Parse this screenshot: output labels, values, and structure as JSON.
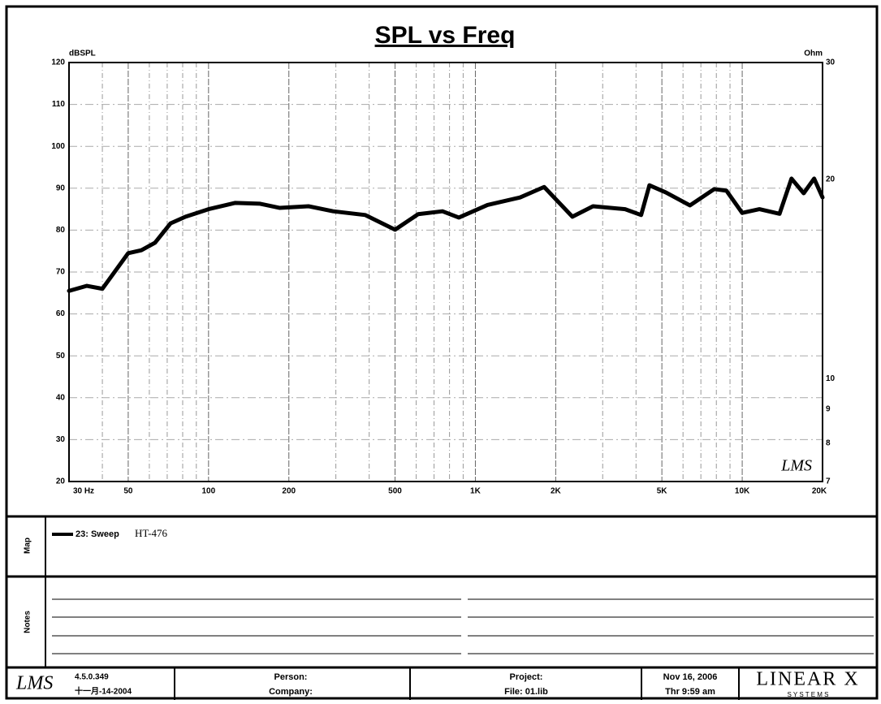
{
  "chart_data": {
    "type": "line",
    "title": "SPL vs Freq",
    "y_label": "dBSPL",
    "y2_label": "Ohm",
    "logo": "LMS",
    "x": [
      30,
      35,
      40,
      50,
      56,
      63,
      72,
      82,
      100,
      126,
      156,
      185,
      237,
      293,
      387,
      500,
      610,
      753,
      867,
      1110,
      1470,
      1810,
      2310,
      2760,
      3640,
      4180,
      4490,
      5170,
      6370,
      7860,
      8730,
      10000,
      11600,
      13800,
      15300,
      17000,
      18600,
      20000
    ],
    "series": [
      {
        "name": "23: Sweep",
        "color": "#000000",
        "values": [
          65.5,
          66.7,
          66,
          74.5,
          75.2,
          77,
          81.6,
          83.2,
          85,
          86.5,
          86.3,
          85.3,
          85.7,
          84.5,
          83.6,
          80.1,
          83.8,
          84.5,
          83,
          86,
          87.8,
          90.3,
          83.2,
          85.7,
          85,
          83.6,
          90.7,
          89,
          85.9,
          89.8,
          89.4,
          84.1,
          85,
          83.9,
          92.3,
          88.8,
          92.3,
          87.8
        ]
      }
    ],
    "xscale": "log",
    "xlim": [
      30,
      20000
    ],
    "xticks": [
      {
        "value": 30,
        "label": "30 Hz"
      },
      50,
      100,
      200,
      500,
      {
        "value": 1000,
        "label": "1K"
      },
      {
        "value": 2000,
        "label": "2K"
      },
      {
        "value": 5000,
        "label": "5K"
      },
      {
        "value": 10000,
        "label": "10K"
      },
      {
        "value": 20000,
        "label": "20K"
      }
    ],
    "xminor": [
      40,
      60,
      70,
      80,
      90,
      300,
      400,
      600,
      700,
      800,
      900,
      3000,
      4000,
      6000,
      7000,
      8000,
      9000
    ],
    "ylim": [
      20,
      120
    ],
    "yticks": [
      20,
      30,
      40,
      50,
      60,
      70,
      80,
      90,
      100,
      110,
      120
    ],
    "y2scale": "log",
    "y2lim": [
      7,
      30
    ],
    "y2ticks": [
      7,
      8,
      9,
      10,
      20,
      30
    ],
    "grid": true
  },
  "map": {
    "label": "Map",
    "note": "HT-476"
  },
  "notes": {
    "label": "Notes"
  },
  "footer": {
    "logo": "LMS",
    "version": "4.5.0.349",
    "build_date": "十一月-14-2004",
    "person": "Person:",
    "company": "Company:",
    "project": "Project:",
    "file": "File: 01.lib",
    "date": "Nov 16, 2006",
    "time": "Thr 9:59 am",
    "brand": "LINEAR X",
    "brand_sub": "S Y S T E M S"
  }
}
